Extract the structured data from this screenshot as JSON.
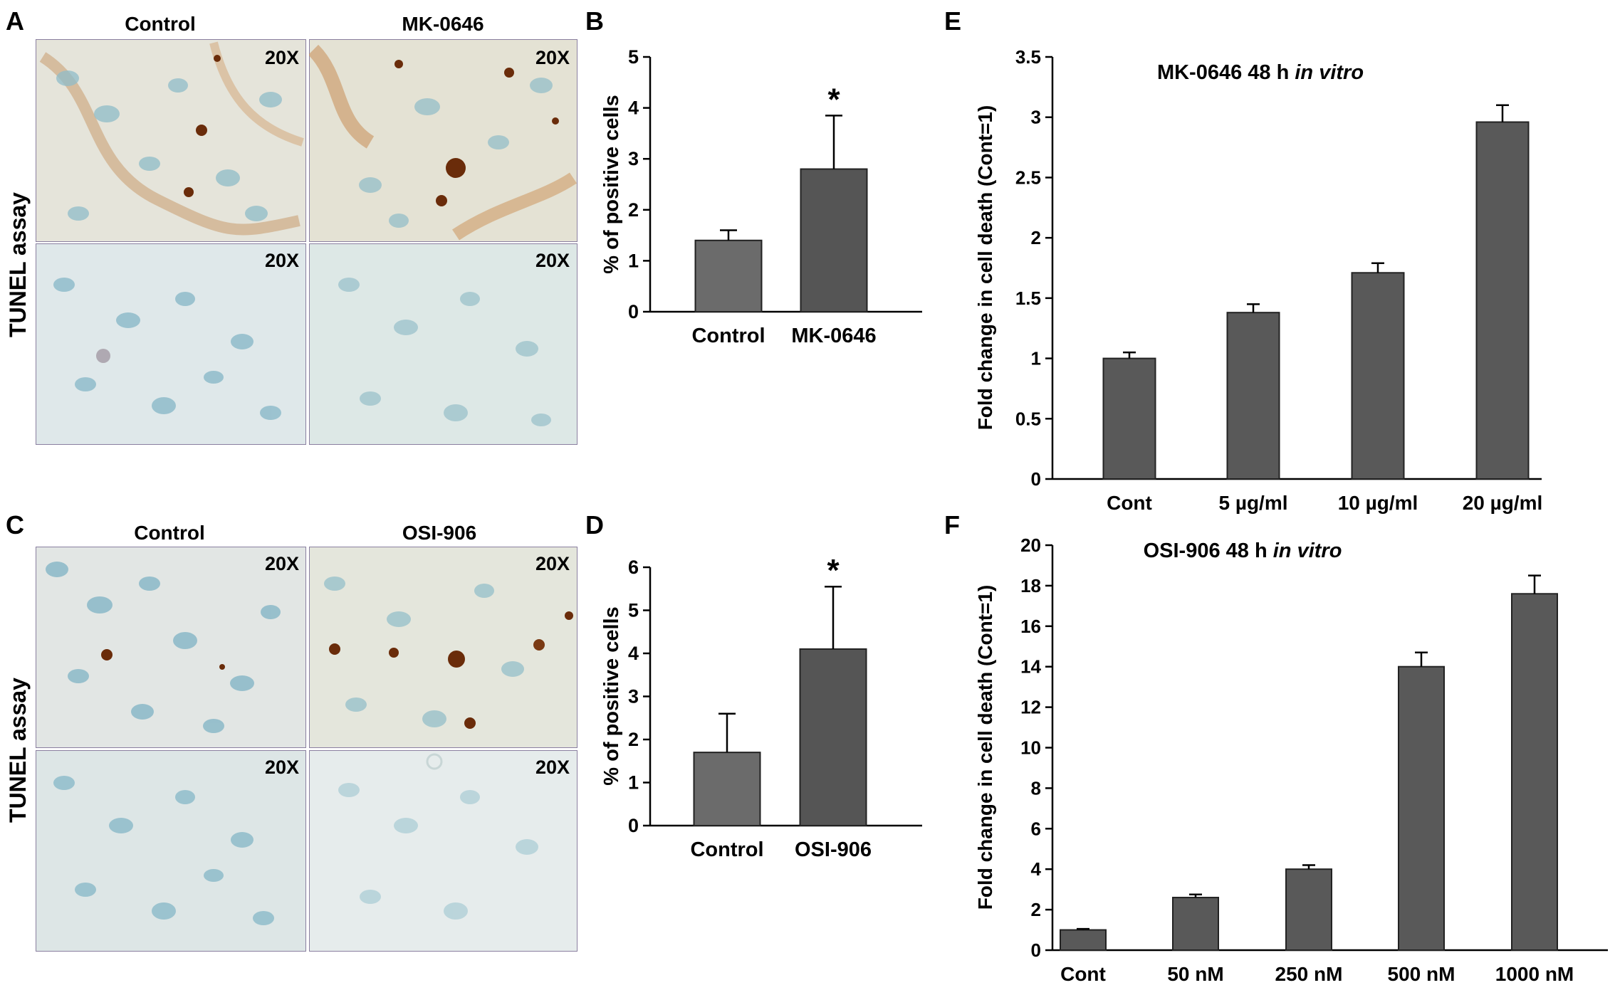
{
  "panel_letters": {
    "a": "A",
    "b": "B",
    "c": "C",
    "d": "D",
    "e": "E",
    "f": "F"
  },
  "micrographs": {
    "side_label": "TUNEL assay",
    "magnification": "20X",
    "panel_a": {
      "left_title": "Control",
      "right_title": "MK-0646"
    },
    "panel_c": {
      "left_title": "Control",
      "right_title": "OSI-906"
    }
  },
  "colors": {
    "control_bar": "#6b6b6b",
    "treated_bar": "#555555",
    "invitro_bar": "#595959",
    "tissue_background": "#dde8ea",
    "nuclei": "#7fb3c4",
    "brown_stain": "#6a2c0a",
    "tissue_border": "#8a7fa0"
  },
  "chart_data": [
    {
      "panel": "B",
      "type": "bar",
      "title": "",
      "xlabel": "",
      "ylabel": "% of positive cells",
      "categories": [
        "Control",
        "MK-0646"
      ],
      "values": [
        1.4,
        2.8
      ],
      "error": [
        0.2,
        1.05
      ],
      "significance": [
        "",
        "*"
      ],
      "ylim": [
        0,
        5
      ],
      "yticks": [
        "0",
        "1",
        "2",
        "3",
        "4",
        "5"
      ],
      "grid": false
    },
    {
      "panel": "D",
      "type": "bar",
      "title": "",
      "xlabel": "",
      "ylabel": "% of positive cells",
      "categories": [
        "Control",
        "OSI-906"
      ],
      "values": [
        1.7,
        4.1
      ],
      "error": [
        0.9,
        1.45
      ],
      "significance": [
        "",
        "*"
      ],
      "ylim": [
        0,
        6
      ],
      "yticks": [
        "0",
        "1",
        "2",
        "3",
        "4",
        "5",
        "6"
      ],
      "grid": false
    },
    {
      "panel": "E",
      "type": "bar",
      "title": "MK-0646 48 h",
      "title_italic": "in vitro",
      "xlabel": "",
      "ylabel": "Fold change in cell death (Cont=1)",
      "categories": [
        "Cont",
        "5 µg/ml",
        "10 µg/ml",
        "20 µg/ml"
      ],
      "values": [
        1.0,
        1.38,
        1.71,
        2.96
      ],
      "error": [
        0.05,
        0.07,
        0.08,
        0.14
      ],
      "ylim": [
        0,
        3.5
      ],
      "yticks": [
        "0",
        "0.5",
        "1",
        "1.5",
        "2",
        "2.5",
        "3",
        "3.5"
      ],
      "grid": false
    },
    {
      "panel": "F",
      "type": "bar",
      "title": "OSI-906 48 h",
      "title_italic": "in vitro",
      "xlabel": "",
      "ylabel": "Fold change in cell death (Cont=1)",
      "categories": [
        "Cont",
        "50 nM",
        "250 nM",
        "500 nM",
        "1000 nM"
      ],
      "values": [
        1.0,
        2.6,
        4.0,
        14.0,
        17.6
      ],
      "error": [
        0.05,
        0.15,
        0.2,
        0.7,
        0.9
      ],
      "ylim": [
        0,
        20
      ],
      "yticks": [
        "0",
        "2",
        "4",
        "6",
        "8",
        "10",
        "12",
        "14",
        "16",
        "18",
        "20"
      ],
      "grid": false
    }
  ]
}
